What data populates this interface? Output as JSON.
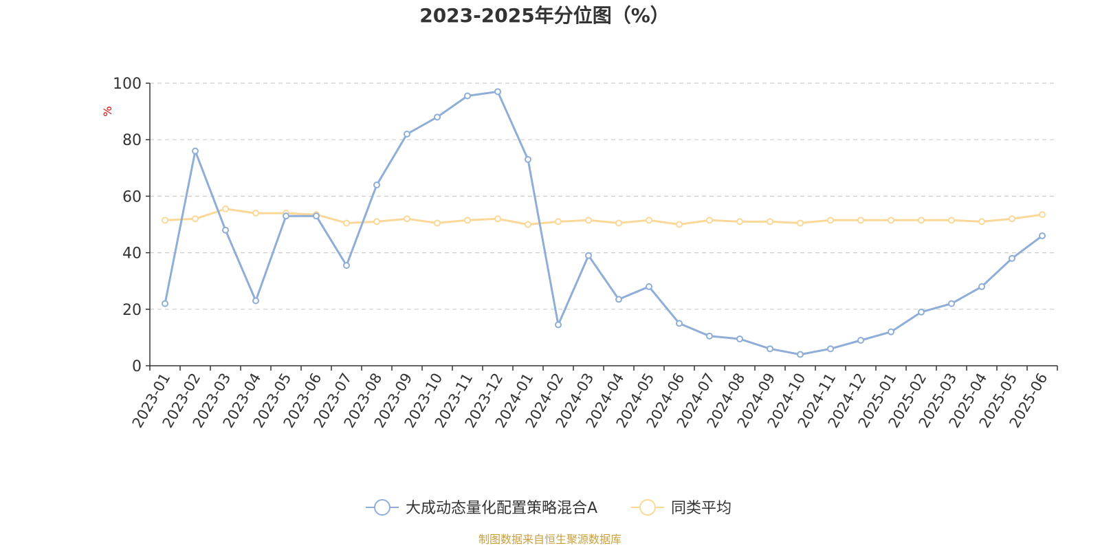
{
  "chart_data": {
    "type": "line",
    "title": "2023-2025年分位图（%）",
    "ylabel": "%",
    "ylim": [
      0,
      100
    ],
    "yticks": [
      0,
      20,
      40,
      60,
      80,
      100
    ],
    "grid": true,
    "legend_position": "bottom",
    "categories": [
      "2023-01",
      "2023-02",
      "2023-03",
      "2023-04",
      "2023-05",
      "2023-06",
      "2023-07",
      "2023-08",
      "2023-09",
      "2023-10",
      "2023-11",
      "2023-12",
      "2024-01",
      "2024-02",
      "2024-03",
      "2024-04",
      "2024-05",
      "2024-06",
      "2024-07",
      "2024-08",
      "2024-09",
      "2024-10",
      "2024-11",
      "2024-12",
      "2025-01",
      "2025-02",
      "2025-03",
      "2025-04",
      "2025-05",
      "2025-06"
    ],
    "series": [
      {
        "name": "大成动态量化配置策略混合A",
        "color": "#8eaed8",
        "values": [
          22,
          76,
          48,
          23,
          53,
          53,
          35.5,
          64,
          82,
          88,
          95.5,
          97,
          73,
          14.5,
          39,
          23.5,
          28,
          15,
          10.5,
          9.5,
          6,
          4,
          6,
          9,
          12,
          19,
          22,
          28,
          38,
          46
        ]
      },
      {
        "name": "同类平均",
        "color": "#fcd898",
        "values": [
          51.5,
          52,
          55.5,
          54,
          54,
          53.5,
          50.5,
          51,
          52,
          50.5,
          51.5,
          52,
          50,
          51,
          51.5,
          50.5,
          51.5,
          50,
          51.5,
          51,
          51,
          50.5,
          51.5,
          51.5,
          51.5,
          51.5,
          51.5,
          51,
          52,
          53.5
        ]
      }
    ]
  },
  "source_text": "制图数据来自恒生聚源数据库"
}
